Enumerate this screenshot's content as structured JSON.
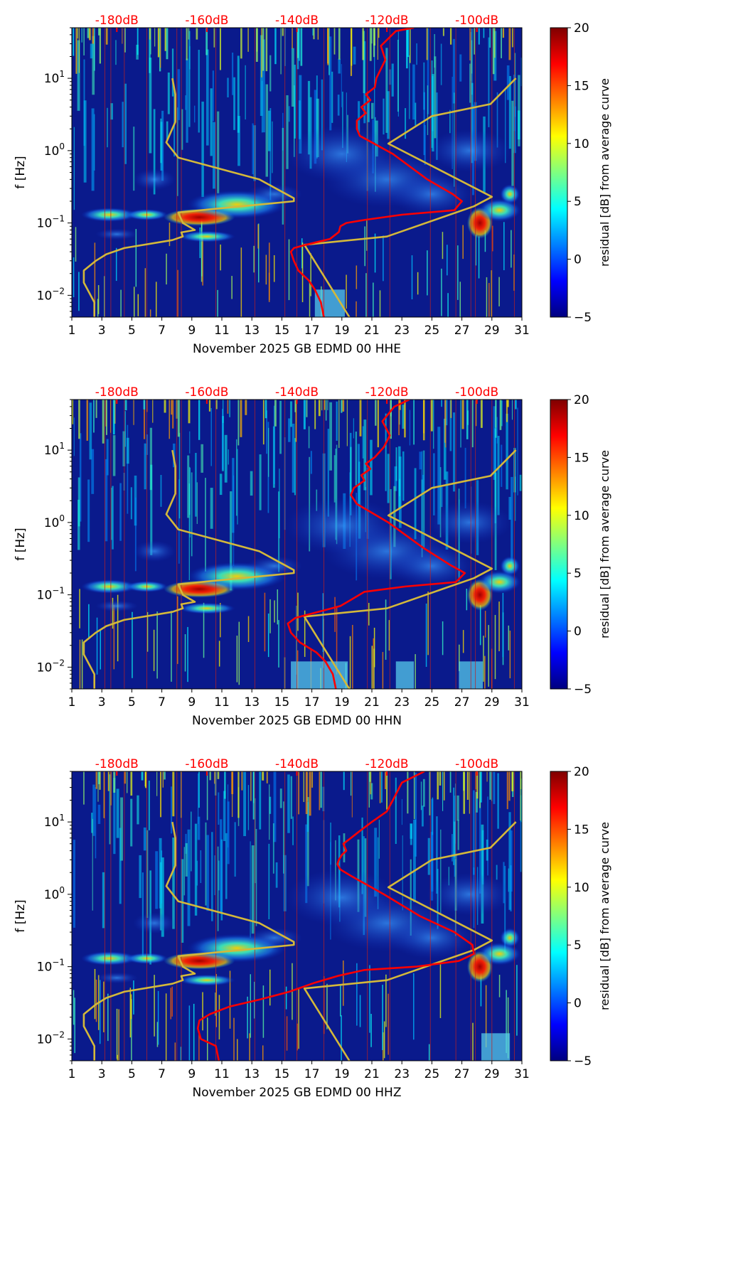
{
  "chart_data": [
    {
      "type": "heatmap",
      "title": "",
      "xlabel": "November 2025 GB EDMD 00 HHE",
      "ylabel": "f [Hz]",
      "x_ticks": [
        "1",
        "3",
        "5",
        "7",
        "9",
        "11",
        "13",
        "15",
        "17",
        "19",
        "21",
        "23",
        "25",
        "27",
        "29",
        "31"
      ],
      "xlim": [
        1,
        31
      ],
      "ylim_hz": [
        0.005,
        50
      ],
      "y_ticks": [
        {
          "value": 0.01,
          "base": "10",
          "exp": "−2"
        },
        {
          "value": 0.1,
          "base": "10",
          "exp": "−1"
        },
        {
          "value": 1,
          "base": "10",
          "exp": "0"
        },
        {
          "value": 10,
          "base": "10",
          "exp": "1"
        }
      ],
      "top_axis_labels": [
        "-180dB",
        "-160dB",
        "-140dB",
        "-120dB",
        "-100dB"
      ],
      "top_axis_day_positions": [
        4,
        10,
        16,
        22,
        28
      ],
      "colorbar": {
        "label": "residual [dB] from average curve",
        "min": -5,
        "max": 20,
        "ticks": [
          "−5",
          "0",
          "5",
          "10",
          "15",
          "20"
        ]
      },
      "series": [
        {
          "name": "noise model (yellow)",
          "color": "#d4b83a",
          "x": [
            2.5,
            2.5,
            1.8,
            1.8,
            2.6,
            3.3,
            4.5,
            7.7,
            8.4,
            8.3,
            9.2,
            8.4,
            8.1,
            15.8,
            15.8,
            13.5,
            8.1,
            7.3,
            7.9,
            7.9,
            7.7
          ],
          "f": [
            0.005,
            0.008,
            0.015,
            0.022,
            0.03,
            0.037,
            0.045,
            0.058,
            0.065,
            0.074,
            0.08,
            0.1,
            0.14,
            0.2,
            0.22,
            0.4,
            0.8,
            1.3,
            2.5,
            6,
            10
          ]
        },
        {
          "name": "noise model high (yellow)",
          "color": "#d4b83a",
          "x": [
            19.5,
            16.5,
            22,
            27.8,
            29,
            22.1,
            25,
            28.9,
            30.6
          ],
          "f": [
            0.005,
            0.05,
            0.065,
            0.17,
            0.23,
            1.25,
            3,
            4.4,
            10
          ]
        },
        {
          "name": "average PSD (red)",
          "color": "#ff0000",
          "x": [
            17.8,
            17.6,
            17.2,
            16.8,
            16.1,
            15.8,
            15.6,
            15.8,
            16.6,
            18.2,
            18.8,
            18.9,
            19.3,
            20.5,
            23,
            26.5,
            27,
            26.4,
            24.7,
            22.4,
            21,
            20.2,
            20,
            20,
            20.6,
            20.3,
            20.9,
            20.6,
            21.2,
            21.3,
            21.9,
            21.6,
            22.6,
            23.8
          ],
          "f": [
            0.005,
            0.008,
            0.012,
            0.016,
            0.022,
            0.03,
            0.04,
            0.045,
            0.05,
            0.06,
            0.075,
            0.09,
            0.1,
            0.11,
            0.13,
            0.15,
            0.2,
            0.25,
            0.4,
            0.9,
            1.3,
            1.6,
            2,
            2.6,
            3.3,
            4,
            5,
            6,
            7.5,
            10,
            18,
            28,
            45,
            50
          ]
        }
      ]
    },
    {
      "type": "heatmap",
      "title": "",
      "xlabel": "November 2025 GB EDMD 00 HHN",
      "ylabel": "f [Hz]",
      "x_ticks": [
        "1",
        "3",
        "5",
        "7",
        "9",
        "11",
        "13",
        "15",
        "17",
        "19",
        "21",
        "23",
        "25",
        "27",
        "29",
        "31"
      ],
      "xlim": [
        1,
        31
      ],
      "ylim_hz": [
        0.005,
        50
      ],
      "y_ticks": [
        {
          "value": 0.01,
          "base": "10",
          "exp": "−2"
        },
        {
          "value": 0.1,
          "base": "10",
          "exp": "−1"
        },
        {
          "value": 1,
          "base": "10",
          "exp": "0"
        },
        {
          "value": 10,
          "base": "10",
          "exp": "1"
        }
      ],
      "top_axis_labels": [
        "-180dB",
        "-160dB",
        "-140dB",
        "-120dB",
        "-100dB"
      ],
      "top_axis_day_positions": [
        4,
        10,
        16,
        22,
        28
      ],
      "colorbar": {
        "label": "residual [dB] from average curve",
        "min": -5,
        "max": 20,
        "ticks": [
          "−5",
          "0",
          "5",
          "10",
          "15",
          "20"
        ]
      },
      "series": [
        {
          "name": "noise model (yellow)",
          "color": "#d4b83a",
          "x": [
            2.5,
            2.5,
            1.8,
            1.8,
            2.6,
            3.3,
            4.5,
            7.7,
            8.4,
            8.3,
            9.2,
            8.4,
            8.1,
            15.8,
            15.8,
            13.5,
            8.1,
            7.3,
            7.9,
            7.9,
            7.7
          ],
          "f": [
            0.005,
            0.008,
            0.015,
            0.022,
            0.03,
            0.037,
            0.045,
            0.058,
            0.065,
            0.074,
            0.08,
            0.1,
            0.14,
            0.2,
            0.22,
            0.4,
            0.8,
            1.3,
            2.5,
            6,
            10
          ]
        },
        {
          "name": "noise model high (yellow)",
          "color": "#d4b83a",
          "x": [
            19.5,
            16.5,
            22,
            27.8,
            29,
            22.1,
            25,
            28.9,
            30.6
          ],
          "f": [
            0.005,
            0.05,
            0.065,
            0.17,
            0.23,
            1.25,
            3,
            4.4,
            10
          ]
        },
        {
          "name": "average PSD (red)",
          "color": "#ff0000",
          "x": [
            18.6,
            18.4,
            17.9,
            17.3,
            16.2,
            15.6,
            15.4,
            15.9,
            17,
            18.9,
            19.6,
            20.5,
            23.2,
            26.6,
            27.2,
            26.2,
            24.4,
            22.1,
            20.9,
            20,
            19.6,
            19.8,
            20.5,
            20.3,
            20.9,
            20.6,
            21.2,
            21.8,
            22.2,
            21.7,
            22.5,
            23.5
          ],
          "f": [
            0.005,
            0.008,
            0.012,
            0.016,
            0.022,
            0.03,
            0.04,
            0.048,
            0.055,
            0.07,
            0.085,
            0.11,
            0.13,
            0.15,
            0.2,
            0.26,
            0.45,
            1,
            1.4,
            1.8,
            2.4,
            3,
            3.8,
            4.5,
            5.5,
            6.5,
            8,
            11,
            16,
            25,
            40,
            50
          ]
        }
      ]
    },
    {
      "type": "heatmap",
      "title": "",
      "xlabel": "November 2025 GB EDMD 00 HHZ",
      "ylabel": "f [Hz]",
      "x_ticks": [
        "1",
        "3",
        "5",
        "7",
        "9",
        "11",
        "13",
        "15",
        "17",
        "19",
        "21",
        "23",
        "25",
        "27",
        "29",
        "31"
      ],
      "xlim": [
        1,
        31
      ],
      "ylim_hz": [
        0.005,
        50
      ],
      "y_ticks": [
        {
          "value": 0.01,
          "base": "10",
          "exp": "−2"
        },
        {
          "value": 0.1,
          "base": "10",
          "exp": "−1"
        },
        {
          "value": 1,
          "base": "10",
          "exp": "0"
        },
        {
          "value": 10,
          "base": "10",
          "exp": "1"
        }
      ],
      "top_axis_labels": [
        "-180dB",
        "-160dB",
        "-140dB",
        "-120dB",
        "-100dB"
      ],
      "top_axis_day_positions": [
        4,
        10,
        16,
        22,
        28
      ],
      "colorbar": {
        "label": "residual [dB] from average curve",
        "min": -5,
        "max": 20,
        "ticks": [
          "−5",
          "0",
          "5",
          "10",
          "15",
          "20"
        ]
      },
      "series": [
        {
          "name": "noise model (yellow)",
          "color": "#d4b83a",
          "x": [
            2.5,
            2.5,
            1.8,
            1.8,
            2.6,
            3.3,
            4.5,
            7.7,
            8.4,
            8.3,
            9.2,
            8.4,
            8.1,
            15.8,
            15.8,
            13.5,
            8.1,
            7.3,
            7.9,
            7.9,
            7.7
          ],
          "f": [
            0.005,
            0.008,
            0.015,
            0.022,
            0.03,
            0.037,
            0.045,
            0.058,
            0.065,
            0.074,
            0.08,
            0.1,
            0.14,
            0.2,
            0.22,
            0.4,
            0.8,
            1.3,
            2.5,
            6,
            10
          ]
        },
        {
          "name": "noise model high (yellow)",
          "color": "#d4b83a",
          "x": [
            19.5,
            16.5,
            22,
            27.8,
            29,
            22.1,
            25,
            28.9,
            30.6
          ],
          "f": [
            0.005,
            0.05,
            0.065,
            0.17,
            0.23,
            1.25,
            3,
            4.4,
            10
          ]
        },
        {
          "name": "average PSD (red)",
          "color": "#ff0000",
          "x": [
            10.8,
            10.6,
            9.6,
            9.4,
            9.5,
            10.2,
            11.5,
            13.5,
            15.5,
            17.2,
            18.8,
            20.5,
            24,
            26.8,
            27.8,
            27.7,
            26.5,
            24.2,
            21.8,
            19.6,
            18.9,
            18.7,
            18.8,
            19,
            19.3,
            19.1,
            19.6,
            20.2,
            21,
            22,
            22.4,
            23,
            24.5
          ],
          "f": [
            0.005,
            0.008,
            0.01,
            0.014,
            0.018,
            0.022,
            0.028,
            0.035,
            0.045,
            0.06,
            0.075,
            0.09,
            0.1,
            0.12,
            0.15,
            0.2,
            0.3,
            0.5,
            1,
            1.8,
            2.2,
            2.6,
            3,
            3.5,
            4,
            5,
            6,
            7.5,
            10,
            14,
            20,
            35,
            50
          ]
        }
      ]
    }
  ]
}
